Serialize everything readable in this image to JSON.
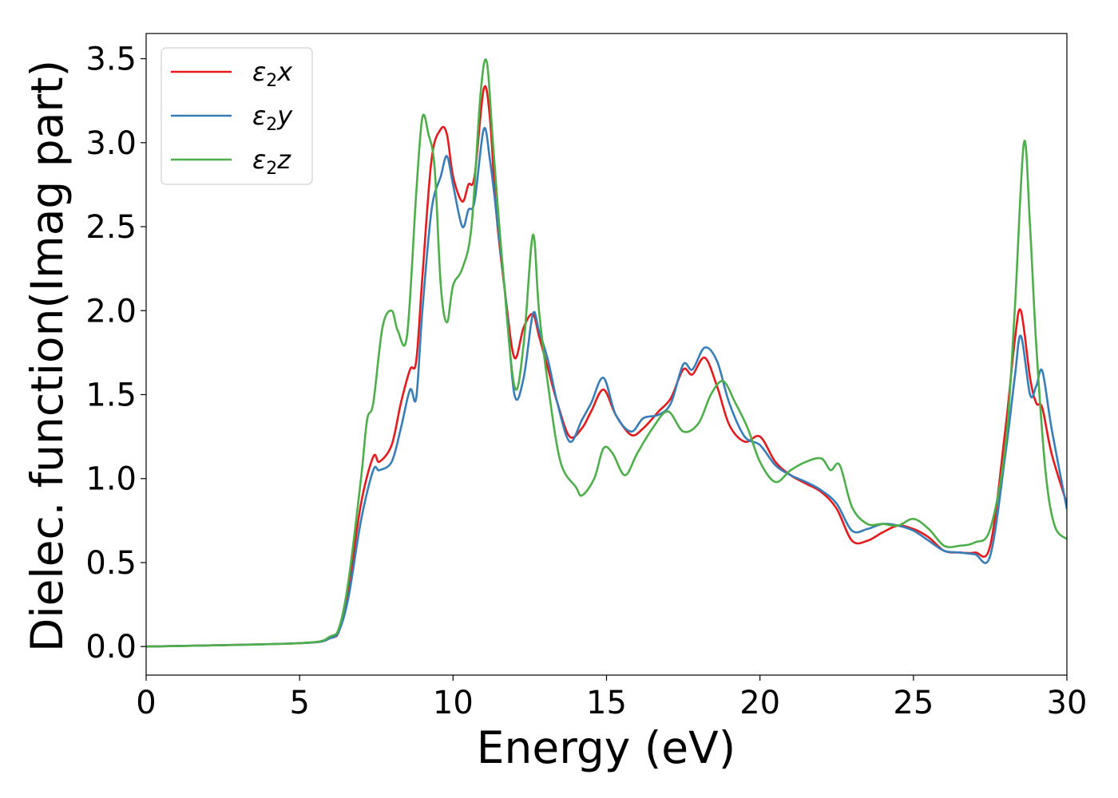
{
  "chart_data": {
    "type": "line",
    "xlabel": "Energy (eV)",
    "ylabel": "Dielec. function(Imag part)",
    "xlim": [
      0,
      30
    ],
    "ylim": [
      -0.17,
      3.65
    ],
    "x_ticks": [
      "0",
      "5",
      "10",
      "15",
      "20",
      "25",
      "30"
    ],
    "y_ticks": [
      "0.0",
      "0.5",
      "1.0",
      "1.5",
      "2.0",
      "2.5",
      "3.0",
      "3.5"
    ],
    "grid": false,
    "legend_position": "upper-left",
    "series": [
      {
        "name": "ε2x",
        "legend": {
          "base": "ε",
          "sub": "2",
          "tail": "x"
        },
        "color": "#e41a1c",
        "x": [
          0,
          5,
          6,
          6.3,
          6.6,
          7.0,
          7.4,
          7.6,
          8.0,
          8.3,
          8.6,
          8.8,
          9.0,
          9.3,
          9.6,
          9.8,
          10.0,
          10.3,
          10.5,
          10.7,
          11.0,
          11.2,
          11.4,
          11.7,
          12.0,
          12.3,
          12.6,
          12.8,
          13.1,
          13.4,
          13.8,
          14.2,
          14.5,
          14.9,
          15.3,
          15.8,
          16.2,
          16.7,
          17.1,
          17.5,
          17.8,
          18.2,
          18.6,
          19.0,
          19.5,
          20.0,
          20.5,
          21.0,
          21.5,
          22.0,
          22.5,
          23.0,
          23.5,
          24.0,
          24.5,
          25.0,
          25.5,
          26.0,
          26.5,
          27.0,
          27.5,
          28.0,
          28.3,
          28.5,
          28.8,
          29.0,
          29.2,
          29.5,
          30.0
        ],
        "y": [
          0,
          0.02,
          0.05,
          0.1,
          0.35,
          0.85,
          1.13,
          1.1,
          1.2,
          1.45,
          1.65,
          1.7,
          2.2,
          2.9,
          3.08,
          3.05,
          2.8,
          2.65,
          2.75,
          2.8,
          3.32,
          3.15,
          2.6,
          2.1,
          1.72,
          1.9,
          1.98,
          1.85,
          1.65,
          1.45,
          1.25,
          1.3,
          1.4,
          1.53,
          1.38,
          1.26,
          1.3,
          1.4,
          1.48,
          1.65,
          1.62,
          1.72,
          1.55,
          1.32,
          1.22,
          1.25,
          1.1,
          1.02,
          0.97,
          0.92,
          0.82,
          0.63,
          0.63,
          0.68,
          0.72,
          0.7,
          0.65,
          0.57,
          0.56,
          0.56,
          0.6,
          1.3,
          1.82,
          2.0,
          1.6,
          1.45,
          1.42,
          1.15,
          0.85
        ]
      },
      {
        "name": "ε2y",
        "legend": {
          "base": "ε",
          "sub": "2",
          "tail": "y"
        },
        "color": "#377eb8",
        "x": [
          0,
          5,
          6,
          6.3,
          6.6,
          7.0,
          7.4,
          7.6,
          8.0,
          8.3,
          8.6,
          8.8,
          9.0,
          9.3,
          9.6,
          9.8,
          10.0,
          10.3,
          10.5,
          10.7,
          11.0,
          11.2,
          11.4,
          11.7,
          12.0,
          12.3,
          12.6,
          12.8,
          13.1,
          13.4,
          13.8,
          14.2,
          14.5,
          14.9,
          15.3,
          15.8,
          16.2,
          16.7,
          17.1,
          17.5,
          17.8,
          18.2,
          18.6,
          19.0,
          19.5,
          20.0,
          20.5,
          21.0,
          21.5,
          22.0,
          22.5,
          23.0,
          23.5,
          24.0,
          24.5,
          25.0,
          25.5,
          26.0,
          26.5,
          27.0,
          27.5,
          28.0,
          28.3,
          28.5,
          28.8,
          29.0,
          29.2,
          29.5,
          30.0
        ],
        "y": [
          0,
          0.02,
          0.05,
          0.1,
          0.3,
          0.75,
          1.05,
          1.05,
          1.1,
          1.3,
          1.53,
          1.48,
          2.0,
          2.6,
          2.8,
          2.92,
          2.75,
          2.5,
          2.6,
          2.65,
          3.08,
          2.9,
          2.6,
          2.1,
          1.5,
          1.6,
          1.98,
          1.88,
          1.7,
          1.45,
          1.22,
          1.35,
          1.45,
          1.6,
          1.38,
          1.28,
          1.36,
          1.38,
          1.45,
          1.68,
          1.65,
          1.78,
          1.7,
          1.45,
          1.25,
          1.2,
          1.08,
          1.02,
          0.98,
          0.93,
          0.85,
          0.69,
          0.7,
          0.73,
          0.72,
          0.69,
          0.63,
          0.57,
          0.56,
          0.55,
          0.54,
          1.15,
          1.6,
          1.85,
          1.5,
          1.55,
          1.64,
          1.3,
          0.82
        ]
      },
      {
        "name": "ε2z",
        "legend": {
          "base": "ε",
          "sub": "2",
          "tail": "z"
        },
        "color": "#4daf4a",
        "x": [
          0,
          5,
          6,
          6.3,
          6.6,
          7.0,
          7.2,
          7.4,
          7.7,
          8.0,
          8.2,
          8.5,
          8.8,
          9.0,
          9.2,
          9.4,
          9.6,
          9.8,
          10.0,
          10.3,
          10.6,
          10.9,
          11.1,
          11.3,
          11.6,
          12.0,
          12.3,
          12.6,
          12.8,
          13.1,
          13.5,
          14.0,
          14.2,
          14.6,
          14.9,
          15.2,
          15.6,
          16.0,
          16.5,
          17.0,
          17.5,
          18.0,
          18.4,
          18.8,
          19.2,
          19.6,
          20.0,
          20.5,
          21.0,
          21.5,
          22.0,
          22.3,
          22.6,
          23.0,
          23.5,
          24.0,
          24.5,
          25.0,
          25.5,
          26.0,
          26.5,
          27.0,
          27.5,
          28.0,
          28.3,
          28.6,
          28.8,
          29.0,
          29.3,
          29.6,
          30.0
        ],
        "y": [
          0,
          0.02,
          0.06,
          0.12,
          0.4,
          1.0,
          1.35,
          1.45,
          1.9,
          2.0,
          1.88,
          1.85,
          2.7,
          3.15,
          3.05,
          2.85,
          2.15,
          1.93,
          2.15,
          2.25,
          2.5,
          3.3,
          3.48,
          3.0,
          2.3,
          1.55,
          1.8,
          2.45,
          2.0,
          1.55,
          1.1,
          0.95,
          0.9,
          1.0,
          1.18,
          1.15,
          1.02,
          1.15,
          1.3,
          1.4,
          1.28,
          1.33,
          1.5,
          1.58,
          1.45,
          1.3,
          1.1,
          0.98,
          1.05,
          1.1,
          1.12,
          1.05,
          1.08,
          0.83,
          0.73,
          0.73,
          0.72,
          0.76,
          0.7,
          0.6,
          0.6,
          0.62,
          0.7,
          1.2,
          2.0,
          3.0,
          2.5,
          1.8,
          1.05,
          0.72,
          0.64
        ]
      }
    ]
  }
}
